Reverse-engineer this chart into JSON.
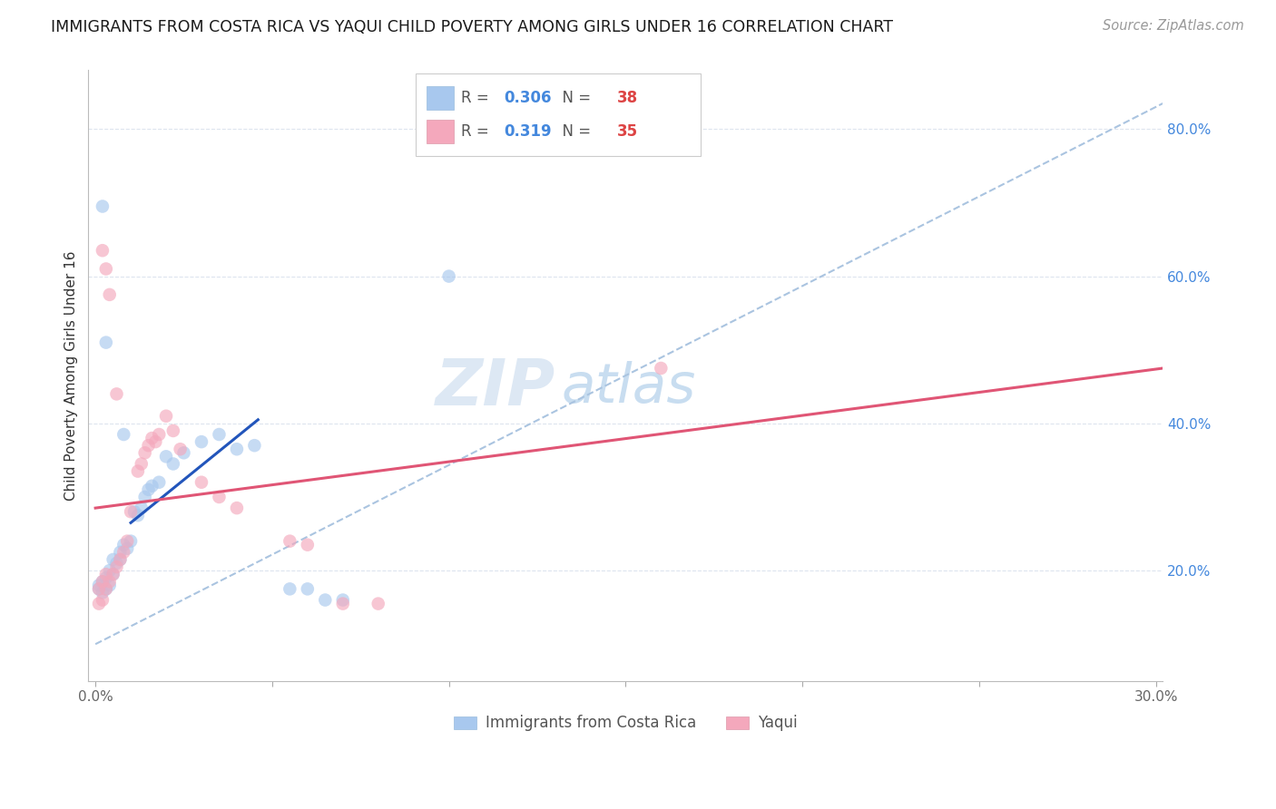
{
  "title": "IMMIGRANTS FROM COSTA RICA VS YAQUI CHILD POVERTY AMONG GIRLS UNDER 16 CORRELATION CHART",
  "source": "Source: ZipAtlas.com",
  "ylabel": "Child Poverty Among Girls Under 16",
  "legend_blue_label": "Immigrants from Costa Rica",
  "legend_pink_label": "Yaqui",
  "r_blue": "0.306",
  "n_blue": "38",
  "r_pink": "0.319",
  "n_pink": "35",
  "xlim": [
    -0.002,
    0.302
  ],
  "ylim": [
    0.05,
    0.88
  ],
  "x_ticks": [
    0.0,
    0.05,
    0.1,
    0.15,
    0.2,
    0.25,
    0.3
  ],
  "x_tick_labels": [
    "0.0%",
    "",
    "",
    "",
    "",
    "",
    "30.0%"
  ],
  "y_ticks_right": [
    0.2,
    0.4,
    0.6,
    0.8
  ],
  "y_tick_labels_right": [
    "20.0%",
    "40.0%",
    "60.0%",
    "80.0%"
  ],
  "blue_scatter_x": [
    0.001,
    0.001,
    0.002,
    0.002,
    0.003,
    0.003,
    0.004,
    0.004,
    0.005,
    0.005,
    0.006,
    0.007,
    0.007,
    0.008,
    0.009,
    0.01,
    0.011,
    0.012,
    0.013,
    0.014,
    0.015,
    0.016,
    0.018,
    0.02,
    0.022,
    0.025,
    0.03,
    0.035,
    0.04,
    0.045,
    0.055,
    0.06,
    0.065,
    0.07,
    0.1,
    0.002,
    0.003,
    0.008
  ],
  "blue_scatter_y": [
    0.18,
    0.175,
    0.17,
    0.185,
    0.175,
    0.19,
    0.18,
    0.2,
    0.195,
    0.215,
    0.21,
    0.215,
    0.225,
    0.235,
    0.23,
    0.24,
    0.28,
    0.275,
    0.285,
    0.3,
    0.31,
    0.315,
    0.32,
    0.355,
    0.345,
    0.36,
    0.375,
    0.385,
    0.365,
    0.37,
    0.175,
    0.175,
    0.16,
    0.16,
    0.6,
    0.695,
    0.51,
    0.385
  ],
  "pink_scatter_x": [
    0.001,
    0.001,
    0.002,
    0.002,
    0.003,
    0.003,
    0.004,
    0.005,
    0.006,
    0.007,
    0.008,
    0.009,
    0.01,
    0.012,
    0.013,
    0.014,
    0.015,
    0.016,
    0.017,
    0.018,
    0.02,
    0.022,
    0.024,
    0.03,
    0.035,
    0.04,
    0.055,
    0.06,
    0.07,
    0.08,
    0.16,
    0.002,
    0.003,
    0.004,
    0.006
  ],
  "pink_scatter_y": [
    0.155,
    0.175,
    0.16,
    0.185,
    0.175,
    0.195,
    0.185,
    0.195,
    0.205,
    0.215,
    0.225,
    0.24,
    0.28,
    0.335,
    0.345,
    0.36,
    0.37,
    0.38,
    0.375,
    0.385,
    0.41,
    0.39,
    0.365,
    0.32,
    0.3,
    0.285,
    0.24,
    0.235,
    0.155,
    0.155,
    0.475,
    0.635,
    0.61,
    0.575,
    0.44
  ],
  "blue_line_x": [
    0.01,
    0.046
  ],
  "blue_line_y": [
    0.265,
    0.405
  ],
  "pink_line_x": [
    0.0,
    0.302
  ],
  "pink_line_y": [
    0.285,
    0.475
  ],
  "dashed_line_x": [
    0.0,
    0.302
  ],
  "dashed_line_y": [
    0.1,
    0.835
  ],
  "scatter_size": 110,
  "blue_color": "#a8c8ee",
  "pink_color": "#f4a8bc",
  "blue_line_color": "#2255bb",
  "pink_line_color": "#e05575",
  "dashed_line_color": "#aac4e0",
  "title_fontsize": 12.5,
  "source_fontsize": 10.5,
  "axis_label_fontsize": 11,
  "tick_fontsize": 11,
  "legend_fontsize": 12,
  "watermark_fontsize": 52,
  "watermark_color": "#dde8f4",
  "bg_color": "#ffffff",
  "grid_color": "#dde4ee",
  "right_tick_color": "#4488dd",
  "r_value_color": "#4488dd",
  "n_value_color": "#dd4444"
}
